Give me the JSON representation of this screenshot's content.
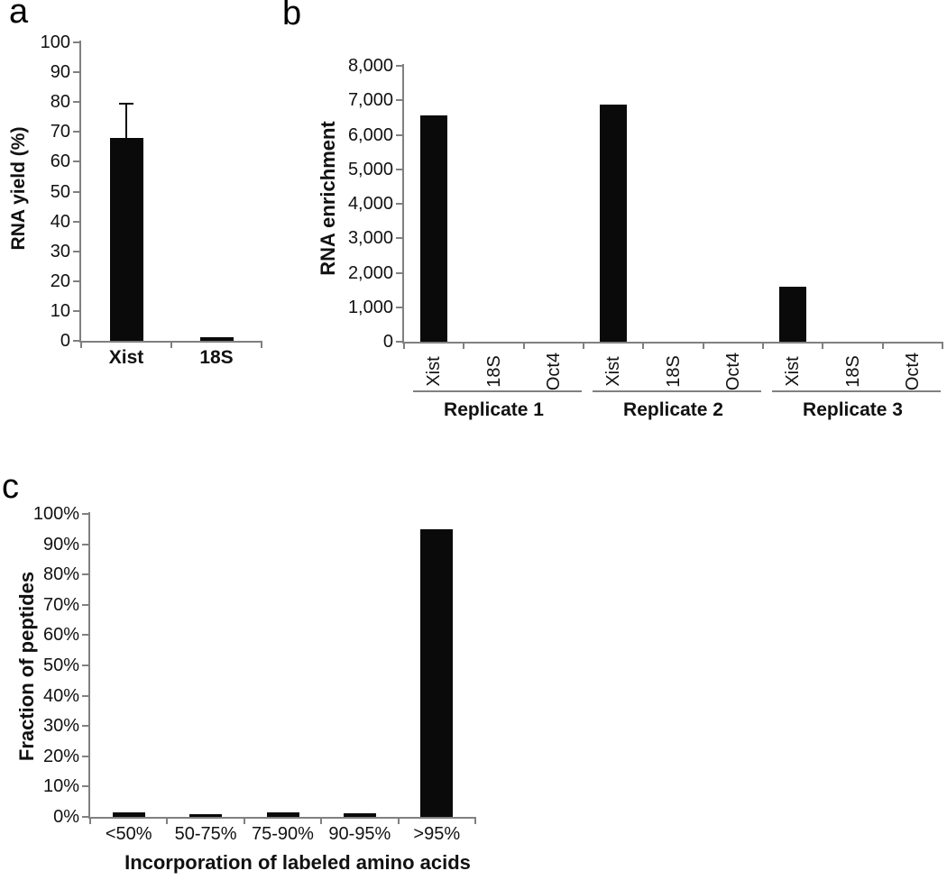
{
  "panels": [
    {
      "letter": "a",
      "chart_data": {
        "type": "bar",
        "categories": [
          "Xist",
          "18S"
        ],
        "values": [
          68,
          1.2
        ],
        "errors_up": [
          11.5,
          0
        ],
        "title": "",
        "xlabel": "",
        "ylabel": "RNA yield (%)",
        "ylim": [
          0,
          100
        ],
        "ytick_step": 10,
        "ytick_format": "plain",
        "ytick_suffix": "",
        "grid": false,
        "legend": false,
        "bar_color": "#0a0a0a"
      }
    },
    {
      "letter": "b",
      "chart_data": {
        "type": "bar",
        "groups": [
          {
            "label": "Replicate 1",
            "categories": [
              "Xist",
              "18S",
              "Oct4"
            ],
            "values": [
              6550,
              0,
              0
            ]
          },
          {
            "label": "Replicate 2",
            "categories": [
              "Xist",
              "18S",
              "Oct4"
            ],
            "values": [
              6870,
              0,
              0
            ]
          },
          {
            "label": "Replicate 3",
            "categories": [
              "Xist",
              "18S",
              "Oct4"
            ],
            "values": [
              1600,
              0,
              0
            ]
          }
        ],
        "title": "",
        "xlabel": "",
        "ylabel": "RNA enrichment",
        "ylim": [
          0,
          8000
        ],
        "ytick_step": 1000,
        "ytick_format": "comma",
        "ytick_suffix": "",
        "grid": false,
        "legend": false,
        "bar_color": "#0a0a0a"
      }
    },
    {
      "letter": "c",
      "chart_data": {
        "type": "bar",
        "categories": [
          "<50%",
          "50-75%",
          "75-90%",
          "90-95%",
          ">95%"
        ],
        "values": [
          1.5,
          0.8,
          1.5,
          1.2,
          95
        ],
        "title": "",
        "xlabel": "Incorporation of labeled amino acids",
        "ylabel": "Fraction of peptides",
        "ylim": [
          0,
          100
        ],
        "ytick_step": 10,
        "ytick_format": "plain",
        "ytick_suffix": "%",
        "grid": false,
        "legend": false,
        "bar_color": "#0a0a0a"
      }
    }
  ]
}
